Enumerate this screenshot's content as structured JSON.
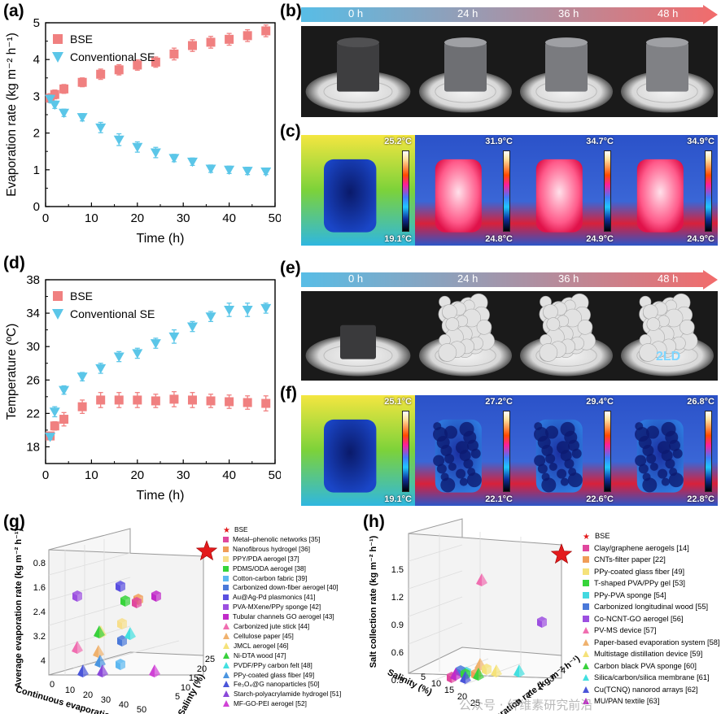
{
  "panel_labels": {
    "a": "(a)",
    "b": "(b)",
    "c": "(c)",
    "d": "(d)",
    "e": "(e)",
    "f": "(f)",
    "g": "(g)",
    "h": "(h)"
  },
  "timeline_b": [
    "0 h",
    "24 h",
    "36 h",
    "48 h"
  ],
  "timeline_e": [
    "0 h",
    "24 h",
    "36 h",
    "48 h"
  ],
  "thermal_c": [
    {
      "top": "25.2°C",
      "bottom": "19.1°C"
    },
    {
      "top": "31.9°C",
      "bottom": "24.8°C"
    },
    {
      "top": "34.7°C",
      "bottom": "24.9°C"
    },
    {
      "top": "34.9°C",
      "bottom": "24.9°C"
    }
  ],
  "thermal_f": [
    {
      "top": "25.1°C",
      "bottom": "19.1°C"
    },
    {
      "top": "27.2°C",
      "bottom": "22.1°C"
    },
    {
      "top": "29.4°C",
      "bottom": "22.6°C"
    },
    {
      "top": "26.8°C",
      "bottom": "22.8°C"
    }
  ],
  "photo_e_mark": "2LD",
  "watermark": "公众号 · 纤维素研究前沿",
  "colors": {
    "bse": "#f08080",
    "conv": "#5bc6e8",
    "arrow_from": "#58bde6",
    "arrow_to": "#f26b6b"
  },
  "chart_data": [
    {
      "type": "scatter",
      "panel": "a",
      "xlabel": "Time (h)",
      "ylabel": "Evaporation rate (kg m⁻² h⁻¹)",
      "xlim": [
        0,
        50
      ],
      "ylim": [
        0,
        5
      ],
      "xticks": [
        0,
        10,
        20,
        30,
        40,
        50
      ],
      "yticks": [
        0,
        1,
        2,
        3,
        4,
        5
      ],
      "legend": "top-left",
      "series": [
        {
          "name": "BSE",
          "marker": "square",
          "x": [
            1,
            2,
            4,
            8,
            12,
            16,
            20,
            24,
            28,
            32,
            36,
            40,
            44,
            48
          ],
          "y": [
            2.95,
            3.05,
            3.2,
            3.38,
            3.6,
            3.72,
            3.85,
            3.93,
            4.15,
            4.38,
            4.47,
            4.55,
            4.65,
            4.78
          ],
          "err": [
            0.12,
            0.12,
            0.12,
            0.12,
            0.14,
            0.14,
            0.14,
            0.14,
            0.16,
            0.16,
            0.16,
            0.16,
            0.16,
            0.16
          ]
        },
        {
          "name": "Conventional SE",
          "marker": "triangle-down",
          "x": [
            1,
            2,
            4,
            8,
            12,
            16,
            20,
            24,
            28,
            32,
            36,
            40,
            44,
            48
          ],
          "y": [
            2.93,
            2.77,
            2.55,
            2.43,
            2.15,
            1.82,
            1.62,
            1.47,
            1.32,
            1.22,
            1.03,
            1.0,
            0.97,
            0.95
          ],
          "err": [
            0.1,
            0.1,
            0.1,
            0.1,
            0.14,
            0.16,
            0.14,
            0.14,
            0.1,
            0.1,
            0.1,
            0.1,
            0.1,
            0.08
          ]
        }
      ]
    },
    {
      "type": "scatter",
      "panel": "d",
      "xlabel": "Time (h)",
      "ylabel": "Temperature (ºC)",
      "xlim": [
        0,
        50
      ],
      "ylim": [
        16,
        38
      ],
      "xticks": [
        0,
        10,
        20,
        30,
        40,
        50
      ],
      "yticks": [
        18,
        22,
        26,
        30,
        34,
        38
      ],
      "legend": "top-left",
      "series": [
        {
          "name": "BSE",
          "marker": "square",
          "x": [
            1,
            2,
            4,
            8,
            12,
            16,
            20,
            24,
            28,
            32,
            36,
            40,
            44,
            48
          ],
          "y": [
            19.3,
            20.5,
            21.3,
            22.8,
            23.6,
            23.6,
            23.6,
            23.5,
            23.7,
            23.6,
            23.5,
            23.4,
            23.3,
            23.2
          ],
          "err": [
            0.3,
            0.5,
            0.8,
            0.8,
            0.9,
            0.9,
            0.9,
            0.8,
            0.9,
            0.9,
            0.8,
            0.8,
            0.8,
            0.9
          ]
        },
        {
          "name": "Conventional SE",
          "marker": "triangle-down",
          "x": [
            1,
            2,
            4,
            8,
            12,
            16,
            20,
            24,
            28,
            32,
            36,
            40,
            44,
            48
          ],
          "y": [
            19.2,
            22.2,
            24.8,
            26.4,
            27.4,
            28.8,
            29.2,
            30.4,
            31.2,
            32.4,
            33.6,
            34.4,
            34.4,
            34.6
          ],
          "err": [
            0.3,
            0.6,
            0.5,
            0.5,
            0.6,
            0.6,
            0.6,
            0.6,
            0.8,
            0.6,
            0.6,
            0.8,
            0.8,
            0.6
          ]
        }
      ]
    },
    {
      "type": "scatter3d",
      "panel": "g",
      "xlabel": "Continuous evaporation time (h)",
      "ylabel": "Salinty (%)",
      "zlabel": "Average evaporation rate (kg m⁻² h⁻¹)",
      "xticks": [
        0,
        10,
        20,
        30,
        40,
        50
      ],
      "yticks": [
        5,
        10,
        15,
        20,
        25
      ],
      "zticks": [
        0.8,
        1.6,
        2.4,
        3.2,
        4.0
      ],
      "legend": [
        {
          "name": "BSE",
          "color": "#e31a1c",
          "shape": "star"
        },
        {
          "name": "Metal–phenolic networks [35]",
          "color": "#e0479e",
          "shape": "square"
        },
        {
          "name": "Nanofibrous hydrogel [36]",
          "color": "#f09d57",
          "shape": "square"
        },
        {
          "name": "PPY/PDA aerogel [37]",
          "color": "#f7de8a",
          "shape": "square"
        },
        {
          "name": "PDMS/ODA aerogel [38]",
          "color": "#36d43a",
          "shape": "square"
        },
        {
          "name": "Cotton-carbon fabric [39]",
          "color": "#5db8f0",
          "shape": "square"
        },
        {
          "name": "Carbonized down-fiber aerogel [40]",
          "color": "#4a79d9",
          "shape": "square"
        },
        {
          "name": "Au@Ag-Pd plasmonics [41]",
          "color": "#5a4fe0",
          "shape": "square"
        },
        {
          "name": "PVA-MXene/PPy sponge [42]",
          "color": "#9c4fe0",
          "shape": "square"
        },
        {
          "name": "Tubular channels GO aerogel [43]",
          "color": "#c12bc9",
          "shape": "square"
        },
        {
          "name": "Carbonized jute stick [44]",
          "color": "#f06eb0",
          "shape": "triangle"
        },
        {
          "name": "Cellulose paper [45]",
          "color": "#f0b26e",
          "shape": "triangle"
        },
        {
          "name": "JMCL aerogel [46]",
          "color": "#f5e27a",
          "shape": "triangle"
        },
        {
          "name": "Ni-DTA wood [47]",
          "color": "#38d13c",
          "shape": "triangle"
        },
        {
          "name": "PVDF/PPy carbon felt [48]",
          "color": "#43e0e0",
          "shape": "triangle"
        },
        {
          "name": "PPy-coated glass fiber [49]",
          "color": "#4a95e0",
          "shape": "triangle"
        },
        {
          "name": "Fe₃O₄@G nanoparticles [50]",
          "color": "#4a55d9",
          "shape": "triangle"
        },
        {
          "name": "Starch-polyacrylamide hydrogel [51]",
          "color": "#8a48d9",
          "shape": "triangle"
        },
        {
          "name": "MF-GO-PEI aerogel [52]",
          "color": "#d042d6",
          "shape": "triangle"
        }
      ]
    },
    {
      "type": "scatter3d",
      "panel": "h",
      "xlabel": "Salinity (%)",
      "ylabel": "Evaporation rate (kg m⁻² h⁻¹)",
      "zlabel": "Salt collection rate (kg m⁻² h⁻¹)",
      "xticks": [
        5,
        10,
        15,
        20,
        25
      ],
      "yticks": [
        0,
        1,
        2,
        3,
        4
      ],
      "zticks": [
        0.3,
        0.6,
        0.9,
        1.2,
        1.5
      ],
      "legend": [
        {
          "name": "BSE",
          "color": "#e31a1c",
          "shape": "star"
        },
        {
          "name": "Clay/graphene aerogels [14]",
          "color": "#e0479e",
          "shape": "square"
        },
        {
          "name": "CNTs-filter paper [22]",
          "color": "#f09d57",
          "shape": "square"
        },
        {
          "name": "PPy-coated glass fiber [49]",
          "color": "#f5e27a",
          "shape": "square"
        },
        {
          "name": "T-shaped PVA/PPy gel [53]",
          "color": "#36d43a",
          "shape": "square"
        },
        {
          "name": "PPy-PVA sponge [54]",
          "color": "#43d9e0",
          "shape": "square"
        },
        {
          "name": "Carbonized longitudinal wood [55]",
          "color": "#4a79d9",
          "shape": "square"
        },
        {
          "name": "Co-NCNT-GO aerogel [56]",
          "color": "#9c4fe0",
          "shape": "square"
        },
        {
          "name": "PV-MS device [57]",
          "color": "#f06eb0",
          "shape": "triangle"
        },
        {
          "name": "Paper-based evaporation system [58]",
          "color": "#f0b26e",
          "shape": "triangle"
        },
        {
          "name": "Multistage distillation device [59]",
          "color": "#f5e27a",
          "shape": "triangle"
        },
        {
          "name": "Carbon black PVA sponge [60]",
          "color": "#38d13c",
          "shape": "triangle"
        },
        {
          "name": "Silica/carbon/silica membrane [61]",
          "color": "#43e0e0",
          "shape": "triangle"
        },
        {
          "name": "Cu(TCNQ) nanorod arrays [62]",
          "color": "#4a55d9",
          "shape": "triangle"
        },
        {
          "name": "MU/PAN textile [63]",
          "color": "#c12bc9",
          "shape": "triangle"
        }
      ]
    }
  ]
}
